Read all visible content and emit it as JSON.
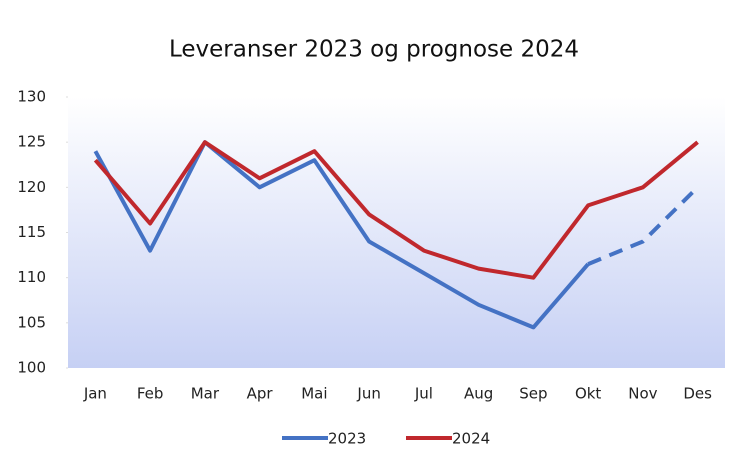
{
  "chart_data": {
    "type": "line",
    "title": "Leveranser 2023 og prognose 2024",
    "categories": [
      "Jan",
      "Feb",
      "Mar",
      "Apr",
      "Mai",
      "Jun",
      "Jul",
      "Aug",
      "Sep",
      "Okt",
      "Nov",
      "Des"
    ],
    "series": [
      {
        "name": "2023",
        "color": "#4472c4",
        "values": [
          124,
          113,
          125,
          120,
          123,
          114,
          110.5,
          107,
          104.5,
          111.5,
          114,
          120
        ],
        "dashed_after": "Okt"
      },
      {
        "name": "2024",
        "color": "#c0282d",
        "values": [
          123,
          116,
          125,
          121,
          124,
          117,
          113,
          111,
          110,
          118,
          120,
          125
        ]
      }
    ],
    "ylim": [
      100,
      130
    ],
    "yticks": [
      100,
      105,
      110,
      115,
      120,
      125,
      130
    ],
    "legend": "bottom"
  }
}
